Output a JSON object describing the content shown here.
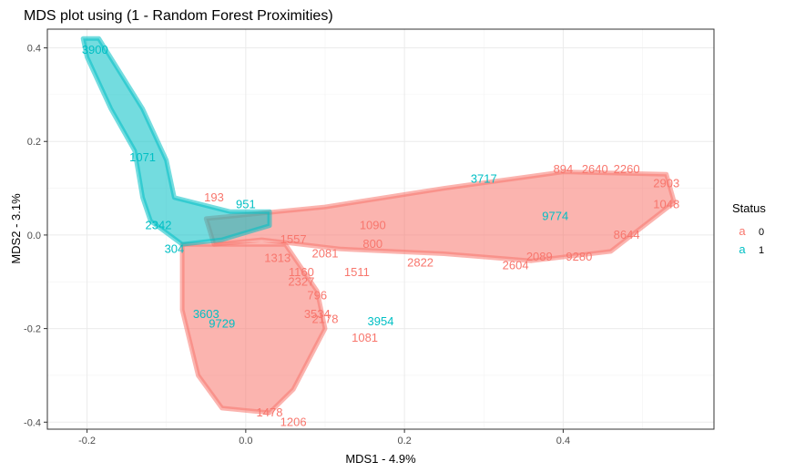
{
  "chart_data": {
    "type": "scatter",
    "title": "MDS plot using (1 - Random Forest Proximities)",
    "xlabel": "MDS1 - 4.9%",
    "ylabel": "MDS2 - 3.1%",
    "xlim": [
      -0.25,
      0.59
    ],
    "ylim": [
      -0.415,
      0.44
    ],
    "x_ticks": [
      -0.2,
      0.0,
      0.2,
      0.4
    ],
    "x_tick_labels": [
      "-0.2",
      "0.0",
      "0.2",
      "0.4"
    ],
    "y_ticks": [
      -0.4,
      -0.2,
      0.0,
      0.2,
      0.4
    ],
    "y_tick_labels": [
      "-0.4",
      "-0.2",
      "0.0",
      "0.2",
      "0.4"
    ],
    "grid": true,
    "legend": {
      "title": "Status",
      "position": "right",
      "key_glyph": "a",
      "entries": [
        {
          "label": "0",
          "color": "#F8766D"
        },
        {
          "label": "1",
          "color": "#00BFC4"
        }
      ]
    },
    "series": [
      {
        "name": "0",
        "color": "#F8766D",
        "points": [
          {
            "x": -0.04,
            "y": 0.08,
            "label": "193"
          },
          {
            "x": 0.16,
            "y": -0.02,
            "label": "800"
          },
          {
            "x": 0.14,
            "y": -0.08,
            "label": "1511"
          },
          {
            "x": 0.1,
            "y": -0.04,
            "label": "2081"
          },
          {
            "x": 0.22,
            "y": -0.06,
            "label": "2822"
          },
          {
            "x": 0.34,
            "y": -0.065,
            "label": "2604"
          },
          {
            "x": 0.37,
            "y": -0.047,
            "label": "2089"
          },
          {
            "x": 0.42,
            "y": -0.047,
            "label": "9280"
          },
          {
            "x": 0.53,
            "y": 0.11,
            "label": "2903"
          },
          {
            "x": 0.53,
            "y": 0.065,
            "label": "1048"
          },
          {
            "x": 0.48,
            "y": 0.0,
            "label": "8644"
          },
          {
            "x": 0.09,
            "y": -0.13,
            "label": "796"
          },
          {
            "x": 0.1,
            "y": -0.18,
            "label": "2178"
          },
          {
            "x": 0.15,
            "y": -0.22,
            "label": "1081"
          },
          {
            "x": 0.09,
            "y": -0.17,
            "label": "3534"
          },
          {
            "x": 0.03,
            "y": -0.38,
            "label": "1478"
          },
          {
            "x": 0.06,
            "y": -0.4,
            "label": "1206"
          },
          {
            "x": 0.07,
            "y": -0.1,
            "label": "2327"
          },
          {
            "x": 0.07,
            "y": -0.08,
            "label": "1160"
          },
          {
            "x": 0.06,
            "y": -0.01,
            "label": "1557"
          },
          {
            "x": 0.04,
            "y": -0.05,
            "label": "1313"
          },
          {
            "x": 0.4,
            "y": 0.14,
            "label": "894"
          },
          {
            "x": 0.44,
            "y": 0.14,
            "label": "2640"
          },
          {
            "x": 0.48,
            "y": 0.14,
            "label": "2260"
          },
          {
            "x": 0.16,
            "y": 0.02,
            "label": "1090"
          }
        ]
      },
      {
        "name": "1",
        "color": "#00BFC4",
        "points": [
          {
            "x": -0.19,
            "y": 0.395,
            "label": "3900"
          },
          {
            "x": -0.13,
            "y": 0.165,
            "label": "1071"
          },
          {
            "x": -0.11,
            "y": 0.02,
            "label": "2342"
          },
          {
            "x": -0.09,
            "y": -0.03,
            "label": "304"
          },
          {
            "x": 0.0,
            "y": 0.065,
            "label": "951"
          },
          {
            "x": 0.17,
            "y": -0.185,
            "label": "3954"
          },
          {
            "x": -0.03,
            "y": -0.19,
            "label": "9729"
          },
          {
            "x": 0.39,
            "y": 0.04,
            "label": "9774"
          },
          {
            "x": -0.05,
            "y": -0.17,
            "label": "3603"
          },
          {
            "x": 0.3,
            "y": 0.12,
            "label": "3717"
          }
        ]
      }
    ]
  }
}
